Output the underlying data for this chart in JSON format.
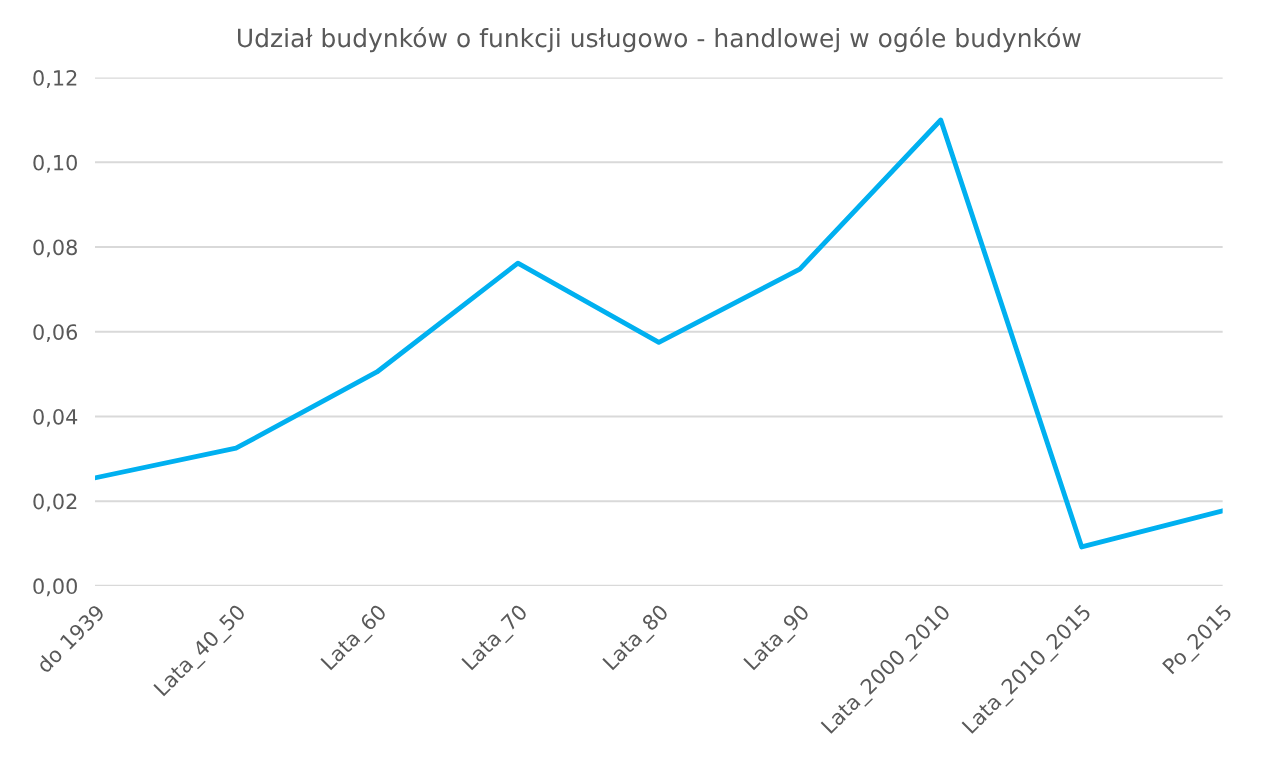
{
  "chart_data": {
    "type": "line",
    "title": "Udział budynków o funkcji usługowo - handlowej w ogóle budynków",
    "categories": [
      "do 1939",
      "Lata_40_50",
      "Lata_60",
      "Lata_70",
      "Lata_80",
      "Lata_90",
      "Lata_2000_2010",
      "Lata_2010_2015",
      "Po_2015"
    ],
    "series": [
      {
        "color": "#00b0f0",
        "values": [
          0.0255,
          0.0325,
          0.0505,
          0.0762,
          0.0575,
          0.0748,
          0.11,
          0.0092,
          0.0177
        ]
      }
    ],
    "ylim": [
      0,
      0.12
    ],
    "yticks": [
      {
        "value": 0,
        "label": "0,00"
      },
      {
        "value": 0.02,
        "label": "0,02"
      },
      {
        "value": 0.04,
        "label": "0,04"
      },
      {
        "value": 0.06,
        "label": "0,06"
      },
      {
        "value": 0.08,
        "label": "0,08"
      },
      {
        "value": 0.1,
        "label": "0,10"
      },
      {
        "value": 0.12,
        "label": "0,12"
      }
    ],
    "grid": "y",
    "legend": false,
    "marker": "none",
    "line_style": "solid"
  }
}
